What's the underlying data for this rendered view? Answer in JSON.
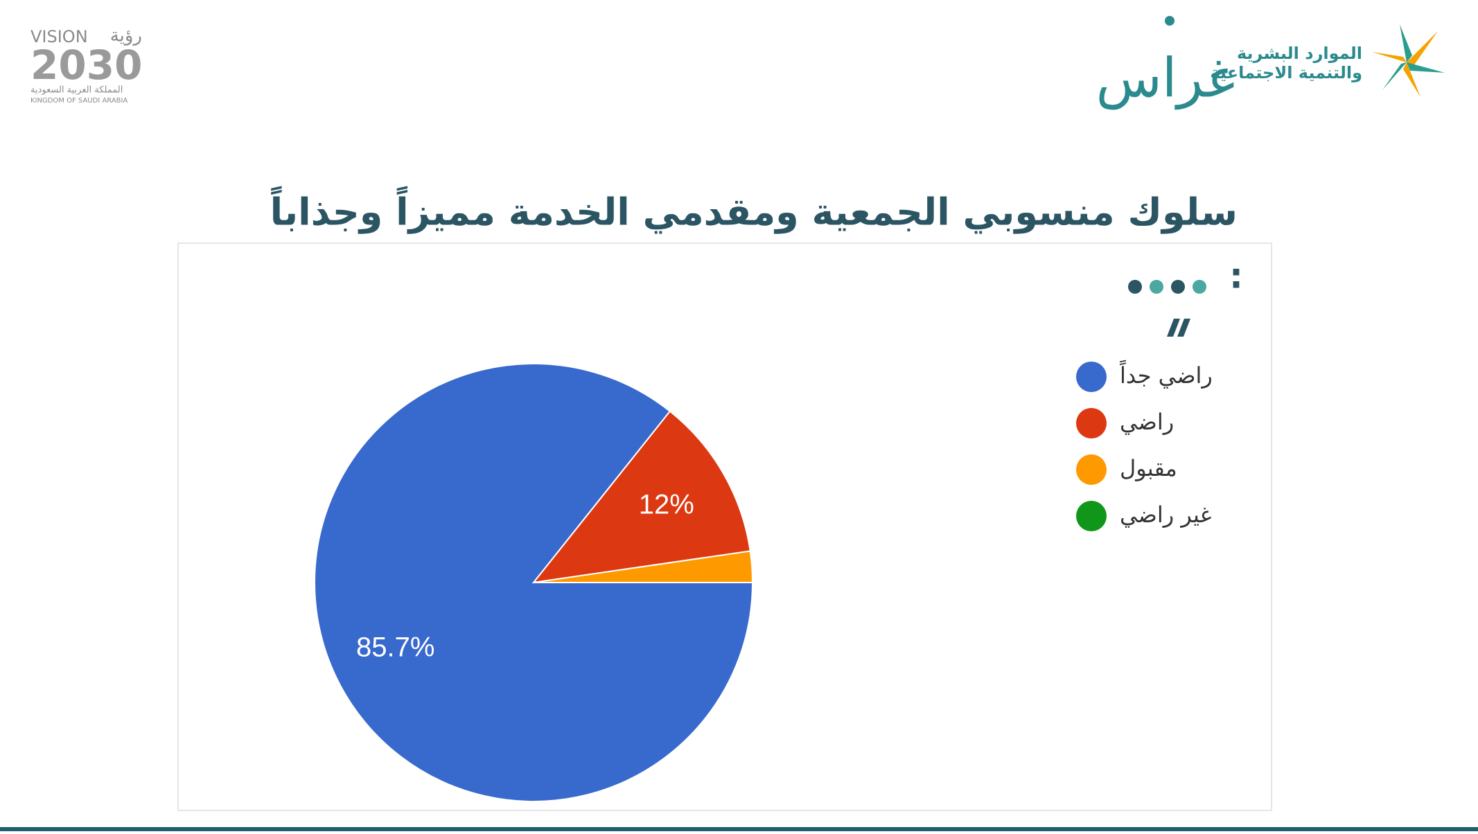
{
  "header": {
    "vision_word": "VISION",
    "vision_arabic": "رؤية",
    "vision_year": "2030",
    "kingdom_arabic": "المملكة العربية السعودية",
    "kingdom_english": "KINGDOM OF SAUDI ARABIA",
    "gerass": "غراس",
    "ministry_line1": "الموارد البشرية",
    "ministry_line2": "والتنمية الاجتماعية"
  },
  "colon": ":",
  "chart_data": {
    "type": "pie",
    "title": "سلوك منسوبي الجمعية ومقدمي الخدمة مميزاً وجذاباً",
    "categories": [
      "راضي جداً",
      "راضي",
      "مقبول",
      "غير راضي"
    ],
    "values": [
      85.7,
      12,
      2.3,
      0
    ],
    "value_labels": [
      "85.7%",
      "12%",
      null,
      null
    ],
    "colors": [
      "#3869cc",
      "#dc3912",
      "#ff9900",
      "#109618"
    ],
    "legend": "right"
  }
}
